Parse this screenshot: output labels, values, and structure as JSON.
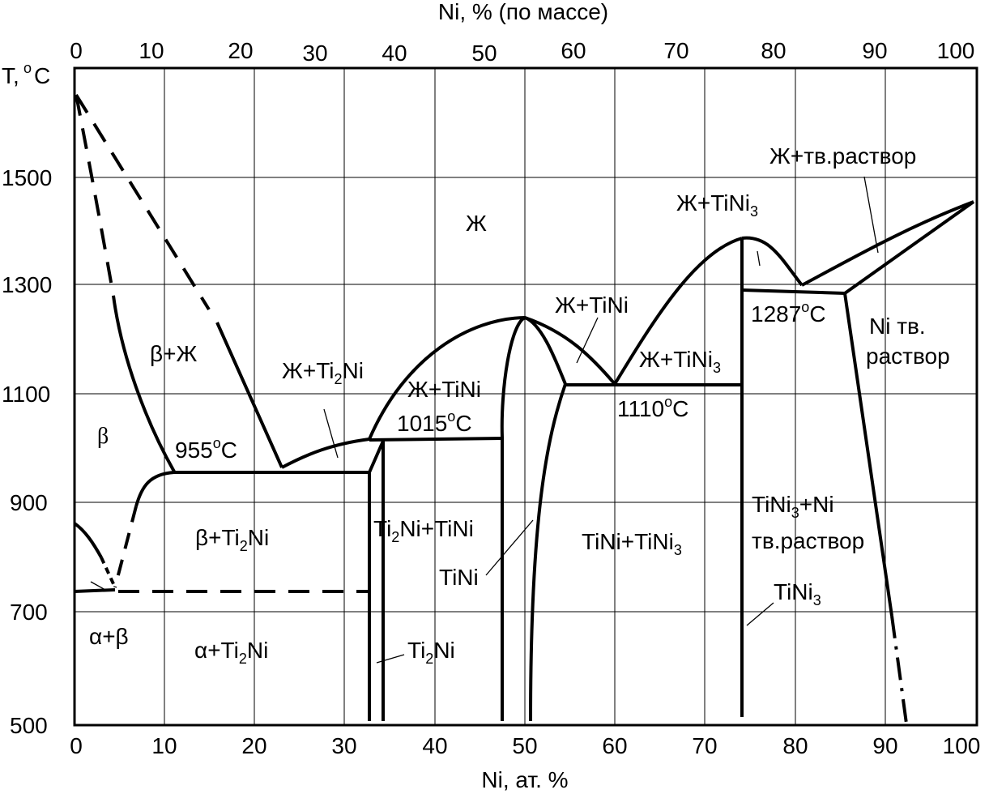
{
  "diagram": {
    "axis_top_title": "Ni, % (по массе)",
    "axis_bottom_title": "Ni, ат. %",
    "axis_left_title_main": "T,",
    "axis_left_title_deg": "o",
    "axis_left_title_unit": "C",
    "top_ticks": [
      "0",
      "10",
      "20",
      "30",
      "40",
      "50",
      "60",
      "70",
      "80",
      "90",
      "100"
    ],
    "bottom_ticks": [
      "0",
      "10",
      "20",
      "30",
      "40",
      "50",
      "60",
      "70",
      "80",
      "90",
      "100"
    ],
    "left_ticks": [
      "1500",
      "1300",
      "1100",
      "900",
      "700",
      "500"
    ],
    "regions": {
      "liquid": "Ж",
      "beta_liquid": "β+Ж",
      "beta": "β",
      "beta_ti2ni_a": "β+Ti",
      "beta_ti2ni_sub": "2",
      "beta_ti2ni_b": "Ni",
      "alpha_beta": "α+β",
      "alpha_ti2ni_a": "α+Ti",
      "alpha_ti2ni_sub": "2",
      "alpha_ti2ni_b": "Ni",
      "liq_ti2ni_a": "Ж+Ti",
      "liq_ti2ni_sub": "2",
      "liq_ti2ni_b": "Ni",
      "liq_tini_left": "Ж+TiNi",
      "liq_tini_right": "Ж+TiNi",
      "ti2ni_tini_a": "Ti",
      "ti2ni_tini_sub": "2",
      "ti2ni_tini_b": "Ni+TiNi",
      "tini_label": "TiNi",
      "ti2ni_label_a": "Ti",
      "ti2ni_label_sub": "2",
      "ti2ni_label_b": "Ni",
      "tini_tini3_a": "TiNi+TiNi",
      "tini_tini3_sub": "3",
      "liq_tini3_upper_a": "Ж+TiNi",
      "liq_tini3_upper_sub": "3",
      "liq_tini3_lower_a": "Ж+TiNi",
      "liq_tini3_lower_sub": "3",
      "liq_solid_solution": "Ж+тв.раствор",
      "ni_solid_line1": "Ni тв.",
      "ni_solid_line2": "раствор",
      "tini3_ni_line1_a": "TiNi",
      "tini3_ni_line1_sub": "3",
      "tini3_ni_line1_b": "+Ni",
      "tini3_ni_line2": "тв.раствор",
      "tini3_label_a": "TiNi",
      "tini3_label_sub": "3"
    },
    "temperatures": {
      "t955_num": "955",
      "t955_deg": "o",
      "t955_unit": "C",
      "t1015_num": "1015",
      "t1015_deg": "o",
      "t1015_unit": "C",
      "t1110_num": "1110",
      "t1110_deg": "o",
      "t1110_unit": "C",
      "t1287_num": "1287",
      "t1287_deg": "o",
      "t1287_unit": "C"
    }
  }
}
